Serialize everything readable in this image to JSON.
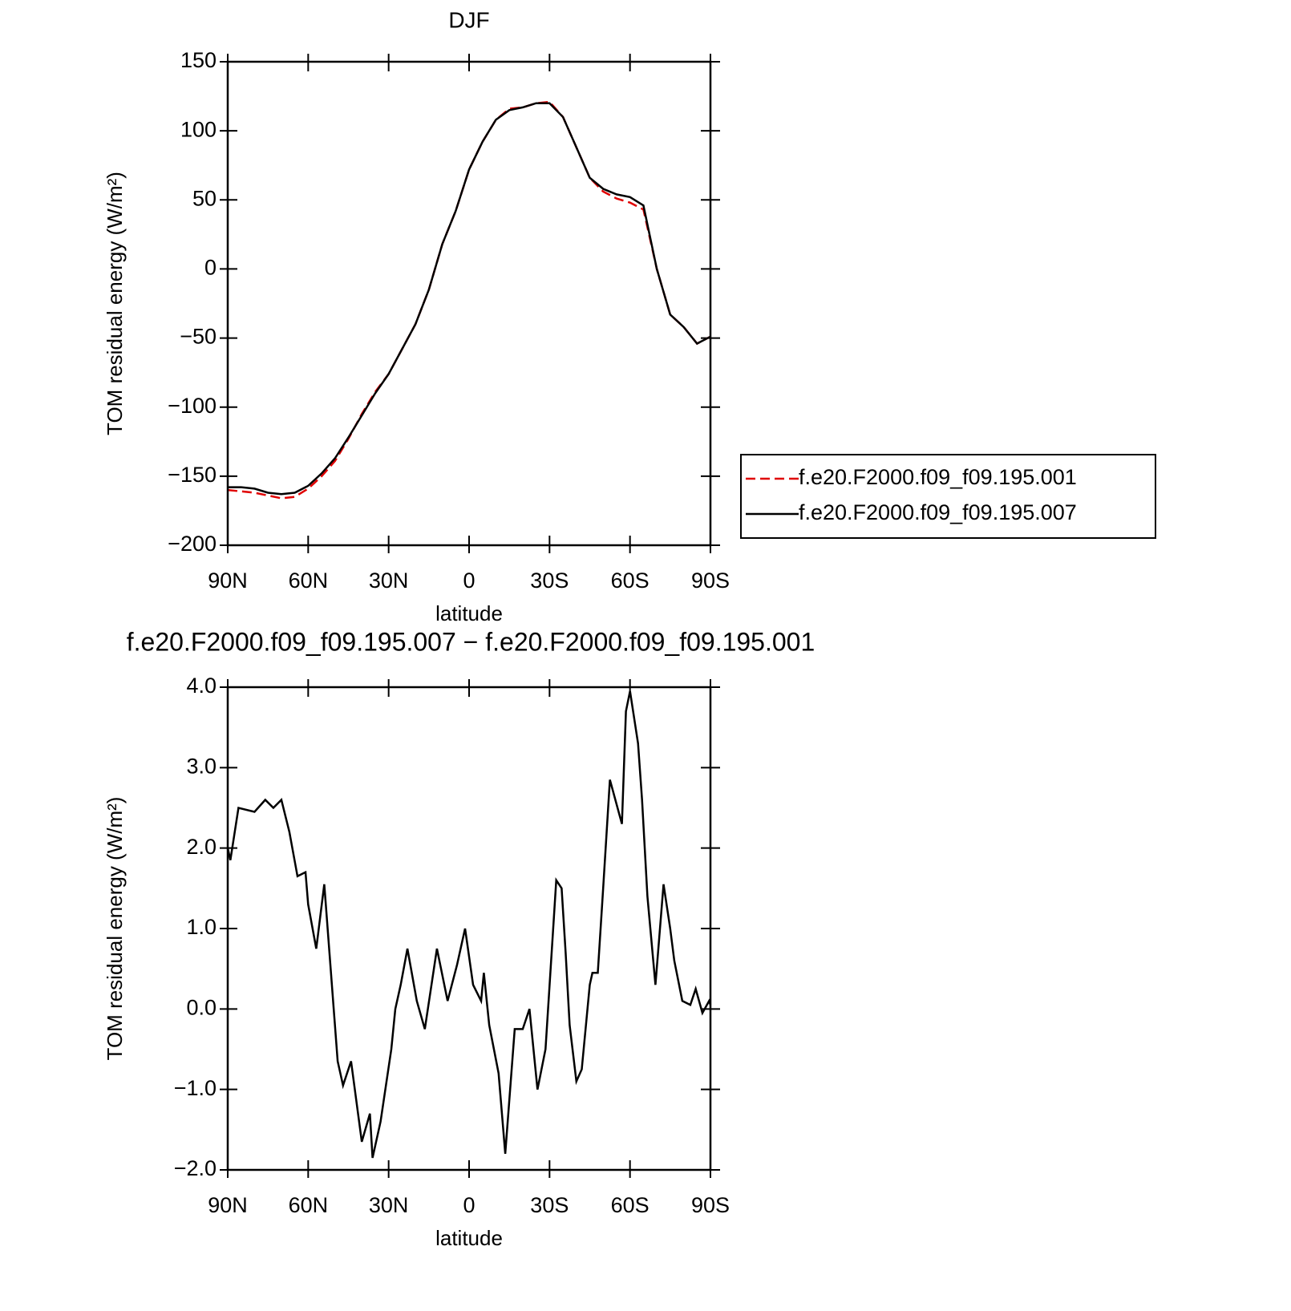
{
  "chart_data": [
    {
      "type": "line",
      "title": "DJF",
      "xlabel": "latitude",
      "ylabel": "TOM residual energy (W/m²)",
      "xlim": [
        90,
        -90
      ],
      "xticks": [
        {
          "value": 90,
          "label": "90N"
        },
        {
          "value": 60,
          "label": "60N"
        },
        {
          "value": 30,
          "label": "30N"
        },
        0,
        {
          "value": -30,
          "label": "30S"
        },
        {
          "value": -60,
          "label": "60S"
        },
        {
          "value": -90,
          "label": "90S"
        }
      ],
      "ylim": [
        -200,
        150
      ],
      "yticks": [
        {
          "value": -200,
          "label": "−200"
        },
        {
          "value": -150,
          "label": "−150"
        },
        {
          "value": -100,
          "label": "−100"
        },
        {
          "value": -50,
          "label": "−50"
        },
        0,
        50,
        100,
        150
      ],
      "legend": "right",
      "x": [
        90,
        85,
        80,
        75,
        70,
        65,
        60,
        55,
        50,
        45,
        40,
        35,
        30,
        25,
        20,
        15,
        10,
        5,
        0,
        -5,
        -10,
        -15,
        -20,
        -25,
        -30,
        -35,
        -40,
        -45,
        -50,
        -55,
        -60,
        -65,
        -70,
        -75,
        -80,
        -85,
        -90
      ],
      "series": [
        {
          "name": "f.e20.F2000.f09_f09.195.001",
          "color": "#e00000",
          "dashed": true,
          "values": [
            -160,
            -161,
            -162,
            -164,
            -166,
            -165,
            -159,
            -150,
            -139,
            -123,
            -105,
            -89,
            -76,
            -58,
            -40,
            -15,
            18,
            42,
            72,
            92,
            108,
            116,
            117,
            120,
            121,
            110,
            88,
            66,
            56,
            51,
            48,
            43,
            0,
            -33,
            -42,
            -54,
            -49
          ]
        },
        {
          "name": "f.e20.F2000.f09_f09.195.007",
          "color": "#000000",
          "dashed": false,
          "values": [
            -158,
            -158,
            -159,
            -162,
            -163,
            -162,
            -157,
            -148,
            -137,
            -122,
            -106,
            -90,
            -76,
            -58,
            -40,
            -15,
            18,
            42,
            72,
            92,
            108,
            115,
            117,
            120,
            120,
            110,
            88,
            66,
            58,
            54,
            52,
            46,
            0,
            -33,
            -42,
            -54,
            -49
          ]
        }
      ]
    },
    {
      "type": "line",
      "title": "f.e20.F2000.f09_f09.195.007 − f.e20.F2000.f09_f09.195.001",
      "xlabel": "latitude",
      "ylabel": "TOM residual energy (W/m²)",
      "xlim": [
        90,
        -90
      ],
      "xticks": [
        {
          "value": 90,
          "label": "90N"
        },
        {
          "value": 60,
          "label": "60N"
        },
        {
          "value": 30,
          "label": "30N"
        },
        0,
        {
          "value": -30,
          "label": "30S"
        },
        {
          "value": -60,
          "label": "60S"
        },
        {
          "value": -90,
          "label": "90S"
        }
      ],
      "ylim": [
        -2,
        4
      ],
      "yticks": [
        {
          "value": -2,
          "label": "−2.0"
        },
        {
          "value": -1,
          "label": "−1.0"
        },
        {
          "value": 0,
          "label": "0.0"
        },
        {
          "value": 1,
          "label": "1.0"
        },
        {
          "value": 2,
          "label": "2.0"
        },
        {
          "value": 3,
          "label": "3.0"
        },
        {
          "value": 4,
          "label": "4.0"
        }
      ],
      "color": "#000000",
      "x": [
        90,
        89,
        86,
        80,
        76,
        73,
        70,
        67,
        64,
        61,
        60,
        57,
        54,
        49,
        47,
        44,
        40,
        37,
        36,
        33,
        29,
        27.5,
        25.5,
        23,
        19.5,
        16.5,
        12,
        8,
        4.5,
        1.5,
        -1.5,
        -4.5,
        -5.5,
        -7.5,
        -11,
        -13.5,
        -17,
        -20,
        -22.5,
        -25.5,
        -28.5,
        -32.5,
        -34.5,
        -36,
        -37.5,
        -40,
        -42,
        -45,
        -46,
        -48,
        -50,
        -52.5,
        -57,
        -58.5,
        -60,
        -63,
        -64.5,
        -66.5,
        -69.5,
        -72.5,
        -75,
        -76.5,
        -79.5,
        -82.5,
        -84.5,
        -87,
        -89.5,
        -90
      ],
      "values": [
        2.0,
        1.85,
        2.5,
        2.45,
        2.6,
        2.5,
        2.6,
        2.2,
        1.65,
        1.7,
        1.3,
        0.75,
        1.55,
        -0.65,
        -0.95,
        -0.65,
        -1.65,
        -1.3,
        -1.85,
        -1.4,
        -0.5,
        0.0,
        0.3,
        0.75,
        0.1,
        -0.25,
        0.75,
        0.1,
        0.55,
        1.0,
        0.3,
        0.1,
        0.45,
        -0.2,
        -0.8,
        -1.8,
        -0.25,
        -0.25,
        0.0,
        -1.0,
        -0.5,
        1.6,
        1.5,
        0.7,
        -0.2,
        -0.9,
        -0.75,
        0.3,
        0.45,
        0.45,
        1.5,
        2.85,
        2.3,
        3.7,
        3.95,
        3.3,
        2.6,
        1.4,
        0.3,
        1.55,
        1.0,
        0.6,
        0.1,
        0.05,
        0.25,
        -0.05,
        0.1,
        0.05
      ]
    }
  ]
}
